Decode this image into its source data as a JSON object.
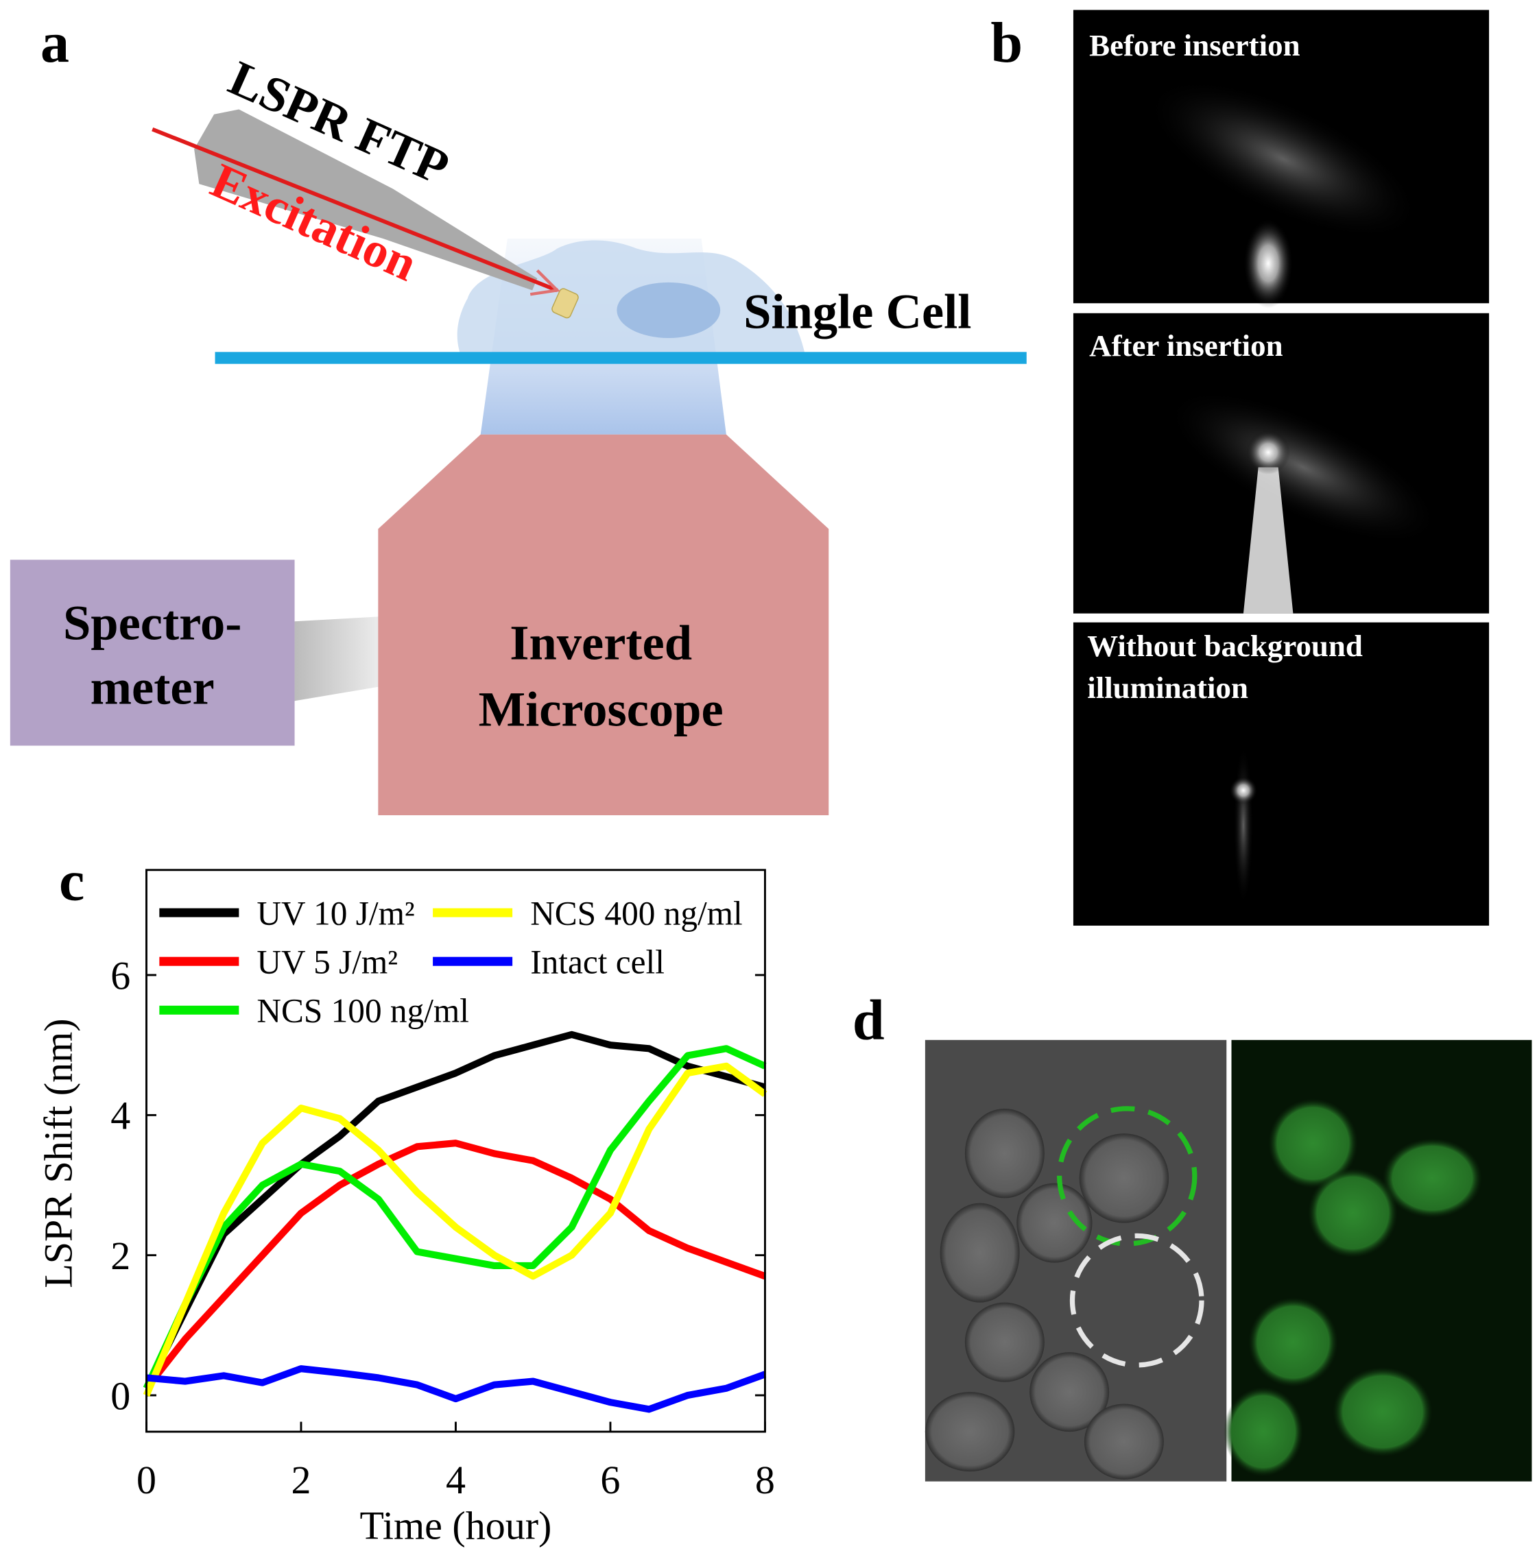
{
  "panel_labels": [
    "a",
    "b",
    "c",
    "d"
  ],
  "diagram": {
    "probe": "LSPR FTP",
    "excitation": "Excitation",
    "cell": "Single Cell",
    "spectrometer": [
      "Spectro-",
      "meter"
    ],
    "microscope": [
      "Inverted",
      "Microscope"
    ]
  },
  "micrographs": {
    "captions": [
      "Before insertion",
      "After insertion",
      [
        "Without background",
        "illumination"
      ]
    ]
  },
  "chart_data": {
    "type": "line",
    "xlabel": "Time (hour)",
    "ylabel": "LSPR Shift (nm)",
    "x": [
      0,
      0.5,
      1,
      1.5,
      2,
      2.5,
      3,
      3.5,
      4,
      4.5,
      5,
      5.5,
      6,
      6.5,
      7,
      7.5,
      8
    ],
    "xlim": [
      0,
      8
    ],
    "ylim": [
      -0.52,
      7.5
    ],
    "xticks": [
      0,
      2,
      4,
      6,
      8
    ],
    "yticks": [
      0,
      2,
      4,
      6
    ],
    "series": [
      {
        "name": "UV 10 J/m²",
        "color": "#000000",
        "values": [
          0.1,
          1.2,
          2.3,
          2.8,
          3.3,
          3.7,
          4.2,
          4.4,
          4.6,
          4.85,
          5.0,
          5.15,
          5.0,
          4.95,
          4.7,
          4.55,
          4.4
        ]
      },
      {
        "name": "UV 5 J/m²",
        "color": "#ff0000",
        "values": [
          0.1,
          0.8,
          1.4,
          2.0,
          2.6,
          3.0,
          3.3,
          3.55,
          3.6,
          3.45,
          3.35,
          3.1,
          2.8,
          2.35,
          2.1,
          1.9,
          1.7
        ]
      },
      {
        "name": "NCS 100 ng/ml",
        "color": "#00ee00",
        "values": [
          0.1,
          1.3,
          2.4,
          3.0,
          3.3,
          3.2,
          2.8,
          2.05,
          1.95,
          1.85,
          1.85,
          2.4,
          3.5,
          4.2,
          4.85,
          4.95,
          4.7
        ]
      },
      {
        "name": "NCS 400 ng/ml",
        "color": "#ffff00",
        "values": [
          0.0,
          1.3,
          2.6,
          3.6,
          4.1,
          3.95,
          3.5,
          2.9,
          2.4,
          2.0,
          1.7,
          2.0,
          2.6,
          3.8,
          4.6,
          4.7,
          4.3
        ]
      },
      {
        "name": "Intact cell",
        "color": "#0000ff",
        "values": [
          0.25,
          0.2,
          0.28,
          0.18,
          0.38,
          0.32,
          0.25,
          0.15,
          -0.05,
          0.15,
          0.2,
          0.05,
          -0.1,
          -0.2,
          0.0,
          0.1,
          0.3
        ]
      }
    ]
  }
}
